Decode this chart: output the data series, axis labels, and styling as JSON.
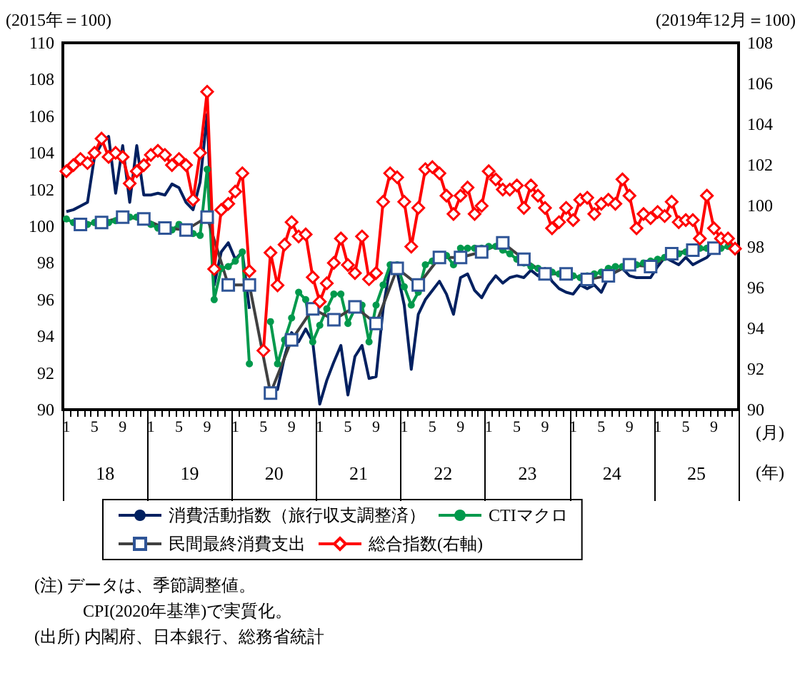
{
  "chart_data": {
    "type": "line",
    "ylabel": "(2015年＝100)",
    "y2label": "(2019年12月＝100)",
    "xlabel": "(月)",
    "categories": [
      "1",
      null,
      null,
      null,
      "5",
      null,
      null,
      null,
      "9",
      null,
      null,
      null,
      "1",
      null,
      null,
      null,
      "5",
      null,
      null,
      null,
      "9",
      null,
      null,
      null,
      "1",
      null,
      null,
      null,
      "5",
      null,
      null,
      null,
      "9",
      null,
      null,
      null,
      "1",
      null,
      null,
      null,
      "5",
      null,
      null,
      null,
      "9",
      null,
      null,
      null,
      "1",
      null,
      null,
      null,
      "5",
      null,
      null,
      null,
      "9",
      null,
      null,
      null,
      "1",
      null,
      null,
      null,
      "5",
      null,
      null,
      null,
      "9",
      null,
      null,
      null,
      "1",
      null,
      null,
      null,
      "5",
      null,
      null,
      null,
      "9",
      null,
      null,
      null,
      "1",
      null,
      null,
      null,
      "5",
      null,
      null,
      null,
      "9",
      null,
      null,
      null
    ],
    "series": [
      {
        "name": "消費活動指数（旅行収支調整済）",
        "color": "#002060",
        "marker": "none",
        "values": [
          100.8,
          100.9,
          101.1,
          101.3,
          103.8,
          104.5,
          104.9,
          101.8,
          104.4,
          101.3,
          104.4,
          101.7,
          101.7,
          101.8,
          101.7,
          102.3,
          102.1,
          101.3,
          100.9,
          102.4,
          106.1,
          96.8,
          98.6,
          99.1,
          98.2,
          98.6,
          95.5,
          null,
          null,
          91.1,
          91.1,
          92.9,
          94.2,
          93.7,
          94.4,
          93.7,
          90.3,
          91.6,
          92.6,
          93.5,
          90.8,
          92.9,
          93.5,
          91.7,
          91.8,
          95.5,
          97.8,
          97.5,
          95.7,
          92.2,
          95.2,
          96.0,
          96.5,
          97.0,
          96.3,
          95.2,
          97.2,
          97.4,
          96.5,
          96.1,
          96.8,
          97.3,
          96.9,
          97.2,
          97.3,
          97.2,
          97.6,
          97.3,
          97.7,
          97.0,
          96.6,
          96.4,
          96.3,
          96.8,
          96.6,
          96.8,
          96.4,
          97.2,
          97.5,
          97.7,
          97.3,
          97.2,
          97.2,
          97.2,
          97.8,
          98.3,
          98.1,
          97.9,
          98.3,
          97.9,
          98.1,
          98.3,
          98.7,
          null,
          null,
          null
        ]
      },
      {
        "name": "CTIマクロ",
        "color": "#00994c",
        "marker": "circle",
        "values": [
          100.4,
          100.2,
          100.1,
          100.1,
          100.2,
          100.1,
          100.2,
          100.3,
          100.4,
          100.5,
          100.5,
          100.4,
          100.1,
          99.9,
          99.9,
          99.8,
          100.1,
          99.9,
          99.6,
          99.5,
          103.1,
          96.0,
          97.7,
          97.8,
          98.1,
          98.6,
          92.5,
          null,
          null,
          94.8,
          92.5,
          93.8,
          95.0,
          96.4,
          96.0,
          93.7,
          94.6,
          95.5,
          96.3,
          96.3,
          94.7,
          95.5,
          95.7,
          93.7,
          95.7,
          96.8,
          97.9,
          97.9,
          96.7,
          95.7,
          96.4,
          97.9,
          98.1,
          98.3,
          98.4,
          97.9,
          98.8,
          98.8,
          98.8,
          98.8,
          98.9,
          98.9,
          98.7,
          98.5,
          98.2,
          98.0,
          97.8,
          97.7,
          97.5,
          97.5,
          97.4,
          97.3,
          97.3,
          97.2,
          97.3,
          97.4,
          97.5,
          97.7,
          97.8,
          97.8,
          97.9,
          97.9,
          98.0,
          98.1,
          98.2,
          98.3,
          98.4,
          98.5,
          98.6,
          98.7,
          98.8,
          98.8,
          98.8,
          98.8,
          98.9,
          null
        ]
      },
      {
        "name": "民間最終消費支出",
        "color": "#404040",
        "marker": "square",
        "values": [
          null,
          null,
          100.1,
          null,
          null,
          100.2,
          null,
          null,
          100.5,
          null,
          null,
          100.4,
          null,
          null,
          99.9,
          null,
          null,
          99.8,
          null,
          null,
          100.5,
          null,
          null,
          96.8,
          null,
          null,
          96.8,
          null,
          null,
          90.9,
          null,
          null,
          93.8,
          null,
          null,
          95.5,
          null,
          null,
          94.9,
          null,
          null,
          95.6,
          null,
          null,
          94.7,
          null,
          null,
          97.7,
          null,
          null,
          96.8,
          null,
          null,
          98.3,
          null,
          null,
          98.3,
          null,
          null,
          98.6,
          null,
          null,
          99.1,
          null,
          null,
          98.2,
          null,
          null,
          97.4,
          null,
          null,
          97.4,
          null,
          null,
          97.1,
          null,
          null,
          97.3,
          null,
          null,
          97.9,
          null,
          null,
          97.8,
          null,
          null,
          98.5,
          null,
          null,
          98.7,
          null,
          null,
          98.8,
          null,
          null,
          null
        ]
      },
      {
        "name": "総合指数(右軸)",
        "color": "#ff0000",
        "marker": "diamond",
        "axis": "y2",
        "values": [
          101.7,
          102.0,
          102.3,
          102.1,
          102.6,
          103.3,
          102.4,
          102.6,
          102.4,
          101.1,
          101.7,
          102.0,
          102.5,
          102.7,
          102.5,
          102.0,
          102.3,
          102.0,
          100.3,
          102.6,
          105.6,
          96.9,
          99.8,
          100.1,
          100.7,
          101.6,
          96.8,
          null,
          92.9,
          97.7,
          96.1,
          98.1,
          99.2,
          98.5,
          98.6,
          96.5,
          95.3,
          96.2,
          97.2,
          98.4,
          97.1,
          96.7,
          98.5,
          96.4,
          96.7,
          100.2,
          101.6,
          101.4,
          100.2,
          98.0,
          99.9,
          101.8,
          101.9,
          101.6,
          100.5,
          99.6,
          100.5,
          100.9,
          99.6,
          100.0,
          101.7,
          101.3,
          100.8,
          100.8,
          101.0,
          99.9,
          101.0,
          100.5,
          99.9,
          98.9,
          99.2,
          99.9,
          99.3,
          100.3,
          100.4,
          99.6,
          100.1,
          100.3,
          100.1,
          101.3,
          100.5,
          98.9,
          99.6,
          99.4,
          99.7,
          99.5,
          100.2,
          99.2,
          99.3,
          99.3,
          98.4,
          100.5,
          98.9,
          98.4,
          98.4,
          97.9
        ]
      }
    ],
    "ylim": [
      90,
      110
    ],
    "yticks": [
      90,
      92,
      94,
      96,
      98,
      100,
      102,
      104,
      106,
      108,
      110
    ],
    "y2lim": [
      90,
      108
    ],
    "y2ticks": [
      90,
      92,
      94,
      96,
      98,
      100,
      102,
      104,
      106,
      108
    ],
    "grid": false,
    "legend": "bottom",
    "annotations": [
      "18",
      "19",
      "20",
      "21",
      "22",
      "23",
      "24",
      "25",
      "(年)",
      "(注) データは、季節調整値。",
      "CPI(2020年基準)で実質化。",
      "(出所) 内閣府、日本銀行、総務省統計"
    ]
  }
}
